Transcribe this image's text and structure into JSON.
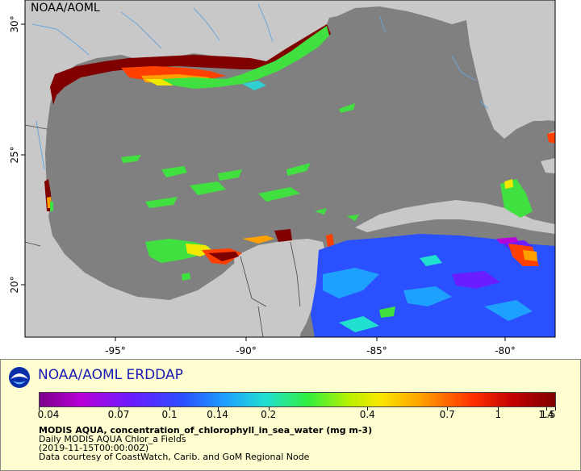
{
  "map": {
    "credit": "NOAA/AOML",
    "lon_labels": [
      "-95°",
      "-90°",
      "-85°",
      "-80°"
    ],
    "lat_labels": [
      "30°",
      "25°",
      "20°"
    ],
    "colors": {
      "land": "#c8c8c8",
      "no_data": "#808080",
      "rivers": "#6aa6dc",
      "borders": "#444444"
    }
  },
  "legend": {
    "brand": "NOAA/AOML ERDDAP",
    "logo_icon": "noaa-logo-icon",
    "colorbar_ticks": [
      "0.04",
      "0.07",
      "0.1",
      "0.14",
      "0.2",
      "0.4",
      "0.7",
      "1",
      "1.4",
      "1.5"
    ],
    "variable": "MODIS AQUA, concentration_of_chlorophyll_in_sea_water (mg m-3)",
    "dataset": "Daily MODIS AQUA Chlor_a Fields",
    "time": "(2019-11-15T00:00:00Z)",
    "courtesy": "Data courtesy of CoastWatch, Carib. and GoM Regional Node"
  }
}
